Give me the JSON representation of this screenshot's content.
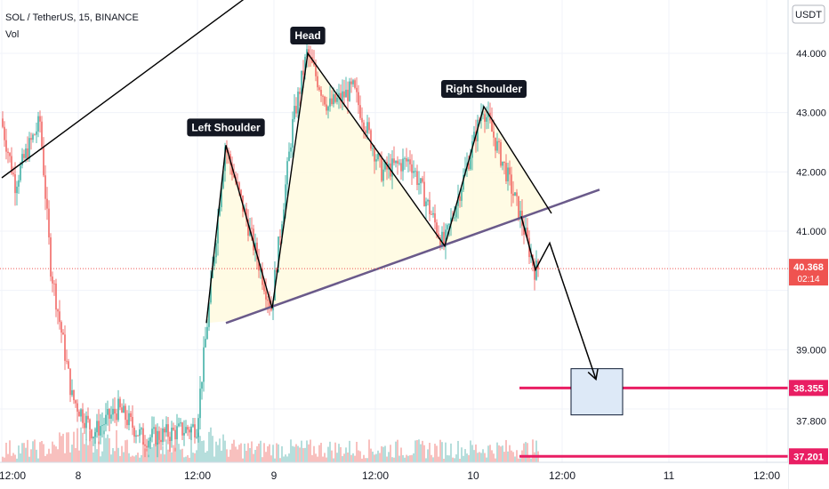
{
  "legend": {
    "symbol": "SOL / TetherUS, 15, BINANCE",
    "volume": "Vol"
  },
  "currency": "USDT",
  "chart_data": {
    "type": "candlestick",
    "symbol": "SOL / TetherUS",
    "interval": "15",
    "exchange": "BINANCE",
    "x_ticks": [
      "12:00",
      "8",
      "12:00",
      "9",
      "12:00",
      "10",
      "12:00",
      "11",
      "12:00"
    ],
    "y_ticks": [
      "44.000",
      "43.000",
      "42.000",
      "41.000",
      "39.000",
      "37.800"
    ],
    "ylim": [
      37.1,
      44.9
    ],
    "last_price": "40.368",
    "countdown": "02:14",
    "levels": [
      {
        "label": "38.355",
        "value": 38.355
      },
      {
        "label": "37.201",
        "value": 37.201
      }
    ],
    "annotations": [
      {
        "text": "Left Shoulder",
        "bar": 126,
        "price": 42.45
      },
      {
        "text": "Head",
        "bar": 172,
        "price": 44.0
      },
      {
        "text": "Right Shoulder",
        "bar": 271,
        "price": 43.1
      }
    ],
    "neckline": {
      "bar1": 126,
      "price1": 39.45,
      "bar2": 336,
      "price2": 41.7
    },
    "trendline": {
      "bar1": 0,
      "price1": 41.9,
      "bar2": 140,
      "price2": 45.0
    },
    "pattern_path": [
      {
        "bar": 115,
        "price": 39.45
      },
      {
        "bar": 126,
        "price": 42.45
      },
      {
        "bar": 152,
        "price": 39.7
      },
      {
        "bar": 172,
        "price": 44.0
      },
      {
        "bar": 249,
        "price": 40.75
      },
      {
        "bar": 271,
        "price": 43.1
      },
      {
        "bar": 309,
        "price": 41.3
      }
    ],
    "projection_path": [
      {
        "bar": 292,
        "price": 41.25
      },
      {
        "bar": 300,
        "price": 40.35
      },
      {
        "bar": 308,
        "price": 40.8
      },
      {
        "bar": 334,
        "price": 38.5
      }
    ],
    "target_box": {
      "bar1": 320,
      "bar2": 349,
      "price_top": 38.68,
      "price_bottom": 37.9
    },
    "volume_series": "Vol",
    "colors": {
      "up": "#26a69a",
      "down": "#ef5350",
      "vol_up": "#a5d6d3",
      "vol_down": "#f7b0ae",
      "level": "#e91e63",
      "neckline": "#6a5a8a",
      "pattern_fill": "#fffbe1",
      "box_fill": "#dde9f7",
      "box_stroke": "#0c1a33",
      "drawing": "#000000",
      "label_bg": "#131722"
    }
  }
}
